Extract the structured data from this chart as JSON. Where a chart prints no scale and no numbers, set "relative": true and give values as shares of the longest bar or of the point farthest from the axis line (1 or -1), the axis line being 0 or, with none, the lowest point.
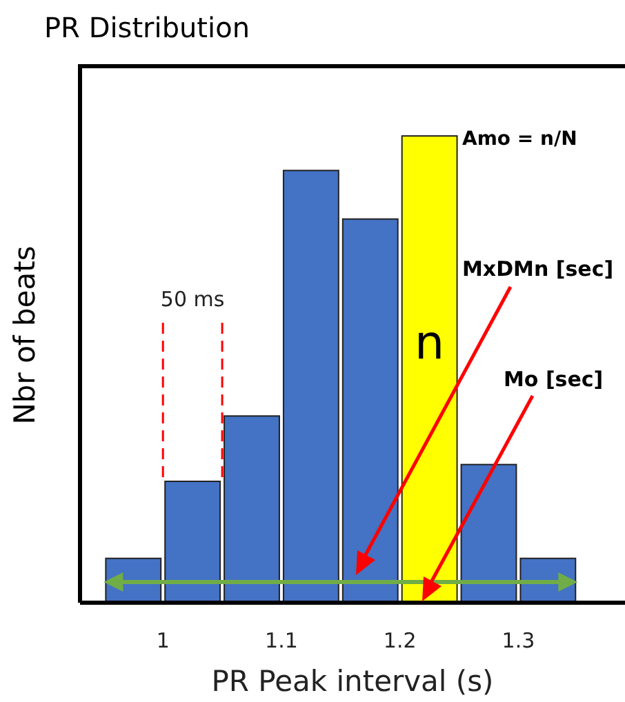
{
  "chart_data": {
    "type": "bar",
    "title": "PR Distribution",
    "xlabel": "PR Peak interval (s)",
    "ylabel": "Nbr of beats",
    "x": [
      0.975,
      1.025,
      1.075,
      1.125,
      1.175,
      1.225,
      1.275,
      1.325
    ],
    "values": [
      0.095,
      0.26,
      0.4,
      0.926,
      0.822,
      1,
      0.296,
      0.095
    ],
    "colors": [
      "#4472c4",
      "#4472c4",
      "#4472c4",
      "#4472c4",
      "#4472c4",
      "#ffff00",
      "#4472c4",
      "#4472c4"
    ],
    "relative": true,
    "xlim": [
      0.93,
      1.39
    ],
    "xticks": [
      1,
      1.1,
      1.2,
      1.3
    ],
    "tick_labels": "x",
    "grid": false,
    "legend": false,
    "annotations": [
      "50 ms",
      "n",
      "Amo = n/N",
      "MxDMn [sec]",
      "Mo [sec]"
    ]
  }
}
